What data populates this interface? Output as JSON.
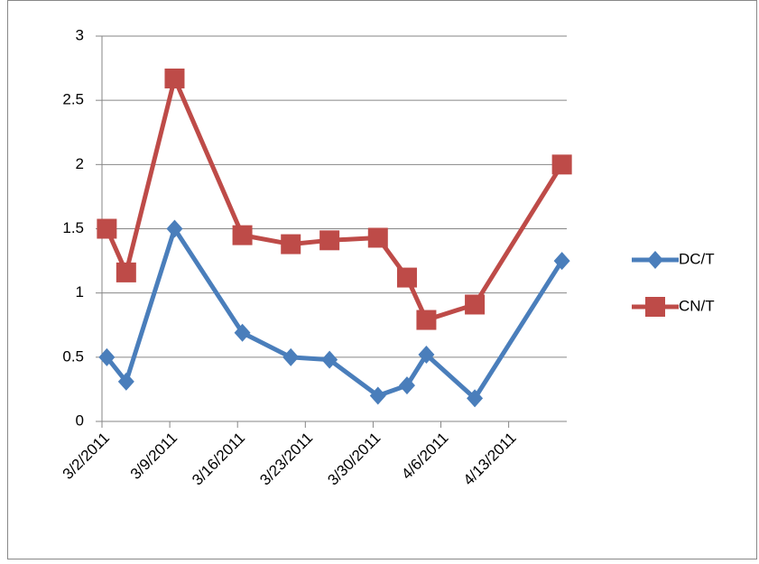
{
  "chart_data": {
    "type": "line",
    "x": [
      "3/2/2011",
      "3/4/2011",
      "3/9/2011",
      "3/16/2011",
      "3/21/2011",
      "3/25/2011",
      "3/30/2011",
      "4/2/2011",
      "4/4/2011",
      "4/9/2011",
      "4/18/2011"
    ],
    "series": [
      {
        "name": "DC/T",
        "color": "#4a7ebb",
        "marker": "diamond",
        "values": [
          0.5,
          0.31,
          1.5,
          0.69,
          0.5,
          0.48,
          0.2,
          0.28,
          0.52,
          0.18,
          1.25
        ]
      },
      {
        "name": "CN/T",
        "color": "#be4b48",
        "marker": "square",
        "values": [
          1.5,
          1.16,
          2.67,
          1.45,
          1.38,
          1.41,
          1.43,
          1.12,
          0.79,
          0.91,
          2.0
        ]
      }
    ],
    "xlim": [
      "3/2/2011",
      "4/19/2011"
    ],
    "xticks": [
      "3/2/2011",
      "3/9/2011",
      "3/16/2011",
      "3/23/2011",
      "3/30/2011",
      "4/6/2011",
      "4/13/2011"
    ],
    "ylim": [
      0,
      3
    ],
    "yticks": [
      0,
      0.5,
      1,
      1.5,
      2,
      2.5,
      3
    ],
    "grid": true,
    "legend": "right"
  }
}
